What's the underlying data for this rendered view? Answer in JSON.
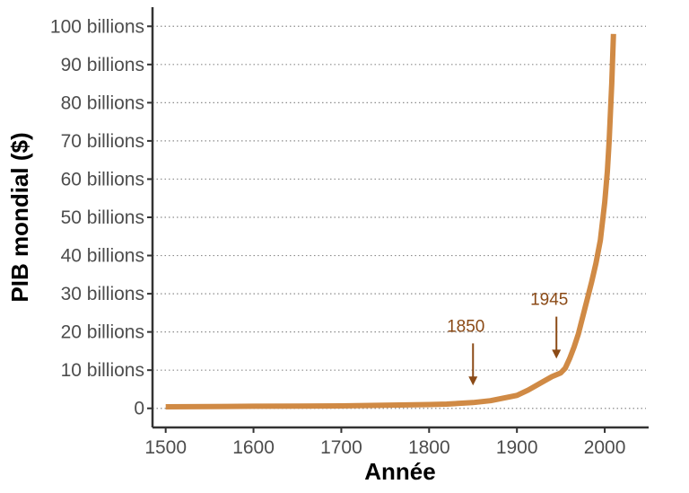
{
  "chart_data": {
    "type": "line",
    "title": "",
    "xlabel": "Année",
    "ylabel": "PIB mondial ($)",
    "xlim": [
      1485,
      2050
    ],
    "ylim": [
      -5,
      105
    ],
    "x_ticks": [
      1500,
      1600,
      1700,
      1800,
      1900,
      2000
    ],
    "x_tick_labels": [
      "1500",
      "1600",
      "1700",
      "1800",
      "1900",
      "2000"
    ],
    "y_ticks": [
      0,
      10,
      20,
      30,
      40,
      50,
      60,
      70,
      80,
      90,
      100
    ],
    "y_tick_labels": [
      "0",
      "10 billions",
      "20 billions",
      "30 billions",
      "40 billions",
      "50 billions",
      "60 billions",
      "70 billions",
      "80 billions",
      "90 billions",
      "100 billions"
    ],
    "grid": {
      "horizontal": true,
      "vertical": false,
      "style": "dotted"
    },
    "line_color": "#d08a45",
    "series": [
      {
        "x": [
          1500,
          1550,
          1600,
          1650,
          1700,
          1750,
          1800,
          1820,
          1850,
          1870,
          1900,
          1913,
          1930,
          1940,
          1950,
          1955,
          1960,
          1965,
          1970,
          1975,
          1980,
          1985,
          1990,
          1995,
          2000,
          2003,
          2005,
          2008,
          2010
        ],
        "y": [
          0.4,
          0.45,
          0.55,
          0.6,
          0.65,
          0.8,
          1.0,
          1.1,
          1.5,
          2.0,
          3.4,
          4.8,
          7.0,
          8.3,
          9.3,
          10.5,
          13.0,
          16.0,
          19.5,
          24.0,
          28.5,
          33.0,
          38.0,
          44.0,
          54.0,
          62.0,
          70.0,
          85.0,
          98.0
        ]
      }
    ],
    "annotations": [
      {
        "label": "1850",
        "x": 1850,
        "y_from": 17,
        "y_to": 6,
        "color": "#8b4a16"
      },
      {
        "label": "1945",
        "x": 1945,
        "y_from": 24,
        "y_to": 13,
        "color": "#8b4a16"
      }
    ]
  }
}
